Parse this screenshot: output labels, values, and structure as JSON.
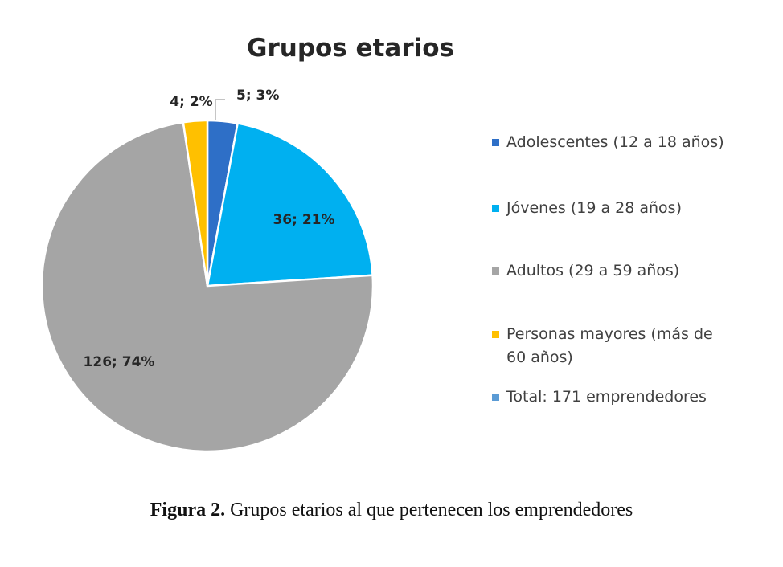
{
  "chart_data": {
    "type": "pie",
    "title": "Grupos etarios",
    "slices": [
      {
        "label": "Adolescentes (12 a 18 años)",
        "value": 5,
        "percent": 3,
        "data_label": "5; 3%",
        "color": "#2e6fc7"
      },
      {
        "label": "Jóvenes (19 a 28 años)",
        "value": 36,
        "percent": 21,
        "data_label": "36; 21%",
        "color": "#00b0f0"
      },
      {
        "label": "Adultos (29 a 59 años)",
        "value": 126,
        "percent": 74,
        "data_label": "126; 74%",
        "color": "#a5a5a5"
      },
      {
        "label": [
          "Personas mayores (más de",
          "60 años)"
        ],
        "value": 4,
        "percent": 2,
        "data_label": "4; 2%",
        "color": "#ffc000"
      }
    ],
    "legend": {
      "placement": "right",
      "extra_entry": {
        "label": "Total: 171 emprendedores",
        "color": "#5b9bd5"
      }
    }
  },
  "caption": {
    "bold": "Figura 2.",
    "text": " Grupos etarios al que pertenecen los emprendedores"
  }
}
